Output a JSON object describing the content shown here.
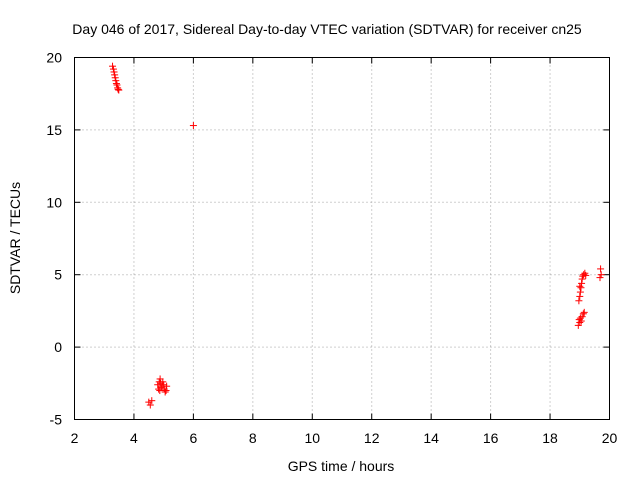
{
  "chart_data": {
    "type": "scatter",
    "title": "Day 046 of 2017, Sidereal Day-to-day VTEC variation (SDTVAR) for receiver cn25",
    "xlabel": "GPS time / hours",
    "ylabel": "SDTVAR / TECUs",
    "xlim": [
      2,
      20
    ],
    "ylim": [
      -5,
      20
    ],
    "xticks": [
      2,
      4,
      6,
      8,
      10,
      12,
      14,
      16,
      18,
      20
    ],
    "yticks": [
      -5,
      0,
      5,
      10,
      15,
      20
    ],
    "xtick_labels": [
      "2",
      "4",
      "6",
      "8",
      "10",
      "12",
      "14",
      "16",
      "18",
      "20"
    ],
    "ytick_labels": [
      "-5",
      "0",
      "5",
      "10",
      "15",
      "20"
    ],
    "grid": true,
    "marker": "plus",
    "color": "#ff0000",
    "series": [
      {
        "name": "SDTVAR",
        "points": [
          [
            3.28,
            19.4
          ],
          [
            3.31,
            19.2
          ],
          [
            3.33,
            19.0
          ],
          [
            3.35,
            18.8
          ],
          [
            3.37,
            18.6
          ],
          [
            3.39,
            18.4
          ],
          [
            3.41,
            18.2
          ],
          [
            3.43,
            18.1
          ],
          [
            3.45,
            17.9
          ],
          [
            3.47,
            17.8
          ],
          [
            3.49,
            17.75
          ],
          [
            4.5,
            -3.8
          ],
          [
            4.55,
            -4.0
          ],
          [
            4.6,
            -3.7
          ],
          [
            4.8,
            -2.6
          ],
          [
            4.85,
            -2.4
          ],
          [
            4.88,
            -2.2
          ],
          [
            4.9,
            -2.5
          ],
          [
            4.92,
            -2.8
          ],
          [
            4.95,
            -2.7
          ],
          [
            4.97,
            -2.4
          ],
          [
            5.0,
            -2.6
          ],
          [
            5.02,
            -2.9
          ],
          [
            5.05,
            -3.1
          ],
          [
            5.08,
            -3.0
          ],
          [
            5.1,
            -2.7
          ],
          [
            4.83,
            -2.9
          ],
          [
            4.87,
            -3.0
          ],
          [
            6.0,
            15.3
          ],
          [
            18.95,
            1.5
          ],
          [
            18.98,
            1.9
          ],
          [
            19.0,
            1.7
          ],
          [
            19.02,
            2.0
          ],
          [
            19.05,
            1.8
          ],
          [
            19.08,
            2.1
          ],
          [
            19.12,
            2.3
          ],
          [
            19.15,
            2.4
          ],
          [
            18.97,
            3.2
          ],
          [
            19.0,
            3.5
          ],
          [
            19.02,
            3.8
          ],
          [
            19.04,
            4.1
          ],
          [
            19.06,
            4.4
          ],
          [
            19.08,
            4.7
          ],
          [
            19.1,
            4.9
          ],
          [
            19.13,
            5.0
          ],
          [
            19.17,
            5.1
          ],
          [
            19.2,
            4.95
          ],
          [
            19.0,
            4.2
          ],
          [
            19.7,
            5.4
          ],
          [
            19.72,
            5.0
          ],
          [
            19.68,
            4.8
          ]
        ]
      }
    ]
  }
}
